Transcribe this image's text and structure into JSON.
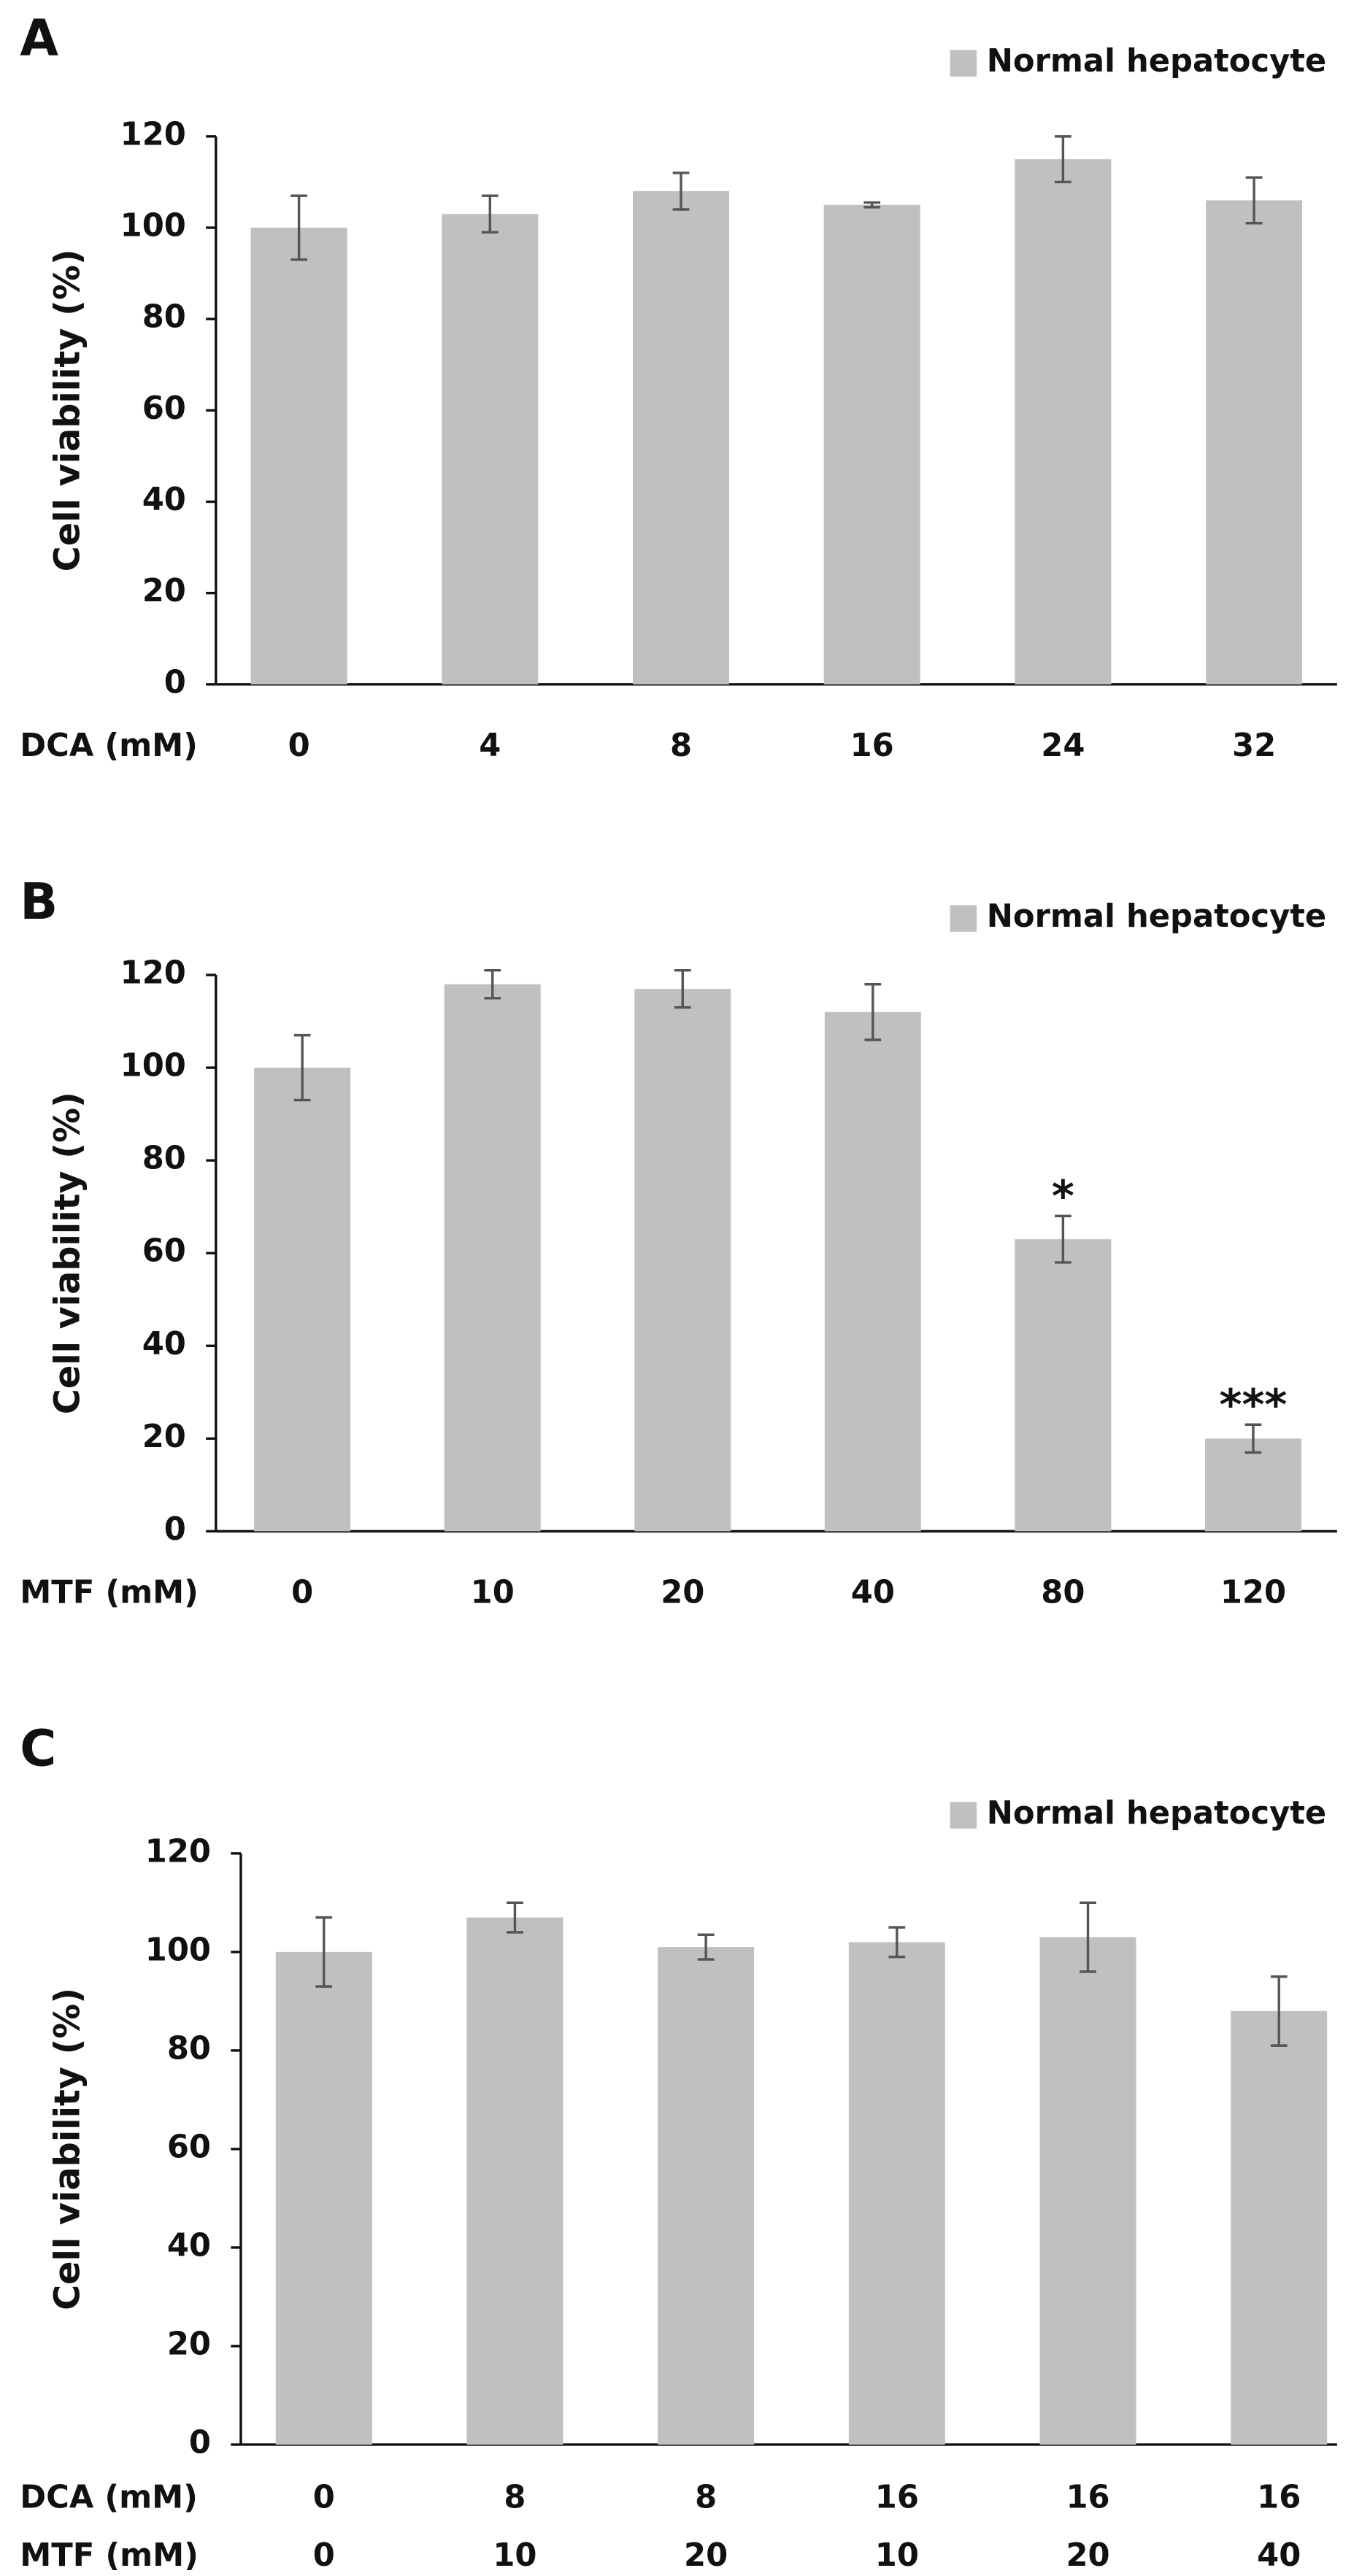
{
  "chart_data": [
    {
      "type": "bar",
      "panel_label": "A",
      "y_label": "Cell viability (%)",
      "categories_label": "DCA (mM)",
      "categories": [
        "0",
        "4",
        "8",
        "16",
        "24",
        "32"
      ],
      "series": [
        {
          "name": "Normal hepatocyte",
          "color": "#c0c0c0",
          "values": [
            100,
            103,
            108,
            105,
            115,
            106
          ],
          "errors": [
            7,
            4,
            4,
            0.5,
            5,
            5
          ]
        }
      ],
      "ylim": [
        0,
        120
      ],
      "yticks": [
        0,
        20,
        40,
        60,
        80,
        100,
        120
      ],
      "legend": "top-right"
    },
    {
      "type": "bar",
      "panel_label": "B",
      "y_label": "Cell viability (%)",
      "categories_label": "MTF (mM)",
      "categories": [
        "0",
        "10",
        "20",
        "40",
        "80",
        "120"
      ],
      "series": [
        {
          "name": "Normal hepatocyte",
          "color": "#c0c0c0",
          "values": [
            100,
            118,
            117,
            112,
            63,
            20
          ],
          "errors": [
            7,
            3,
            4,
            6,
            5,
            3
          ],
          "value_annotations": [
            null,
            null,
            null,
            null,
            "*",
            "***"
          ]
        }
      ],
      "ylim": [
        0,
        120
      ],
      "yticks": [
        0,
        20,
        40,
        60,
        80,
        100,
        120
      ],
      "legend": "top-right"
    },
    {
      "type": "bar",
      "panel_label": "C",
      "y_label": "Cell viability (%)",
      "categories_label": "DCA (mM)",
      "categories": [
        "0",
        "8",
        "8",
        "16",
        "16",
        "16"
      ],
      "categories2_label": "MTF (mM)",
      "categories2": [
        "0",
        "10",
        "20",
        "10",
        "20",
        "40"
      ],
      "series": [
        {
          "name": "Normal hepatocyte",
          "color": "#c0c0c0",
          "values": [
            100,
            107,
            101,
            102,
            103,
            88
          ],
          "errors": [
            7,
            3,
            2.5,
            3,
            7,
            7
          ]
        }
      ],
      "ylim": [
        0,
        120
      ],
      "yticks": [
        0,
        20,
        40,
        60,
        80,
        100,
        120
      ],
      "legend": "top-right"
    }
  ]
}
